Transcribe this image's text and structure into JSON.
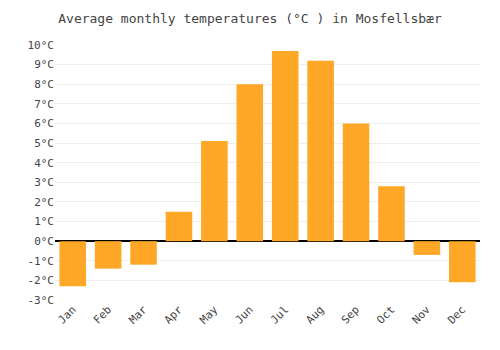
{
  "chart_data": {
    "type": "bar",
    "title": "Average monthly temperatures (°C ) in Mosfellsbær",
    "categories": [
      "Jan",
      "Feb",
      "Mar",
      "Apr",
      "May",
      "Jun",
      "Jul",
      "Aug",
      "Sep",
      "Oct",
      "Nov",
      "Dec"
    ],
    "values": [
      -2.3,
      -1.4,
      -1.2,
      1.5,
      5.1,
      8.0,
      9.7,
      9.2,
      6.0,
      2.8,
      -0.7,
      -2.1
    ],
    "color": "#FFA726",
    "ylim": [
      -3,
      10
    ],
    "yticks": [
      {
        "value": -3,
        "label": "-3°C"
      },
      {
        "value": -2,
        "label": "-2°C"
      },
      {
        "value": -1,
        "label": "-1°C"
      },
      {
        "value": 0,
        "label": "0°C"
      },
      {
        "value": 1,
        "label": "1°C"
      },
      {
        "value": 2,
        "label": "2°C"
      },
      {
        "value": 3,
        "label": "3°C"
      },
      {
        "value": 4,
        "label": "4°C"
      },
      {
        "value": 5,
        "label": "5°C"
      },
      {
        "value": 6,
        "label": "6°C"
      },
      {
        "value": 7,
        "label": "7°C"
      },
      {
        "value": 8,
        "label": "8°C"
      },
      {
        "value": 9,
        "label": "9°C"
      },
      {
        "value": 10,
        "label": "10°C"
      }
    ],
    "grid": true
  }
}
